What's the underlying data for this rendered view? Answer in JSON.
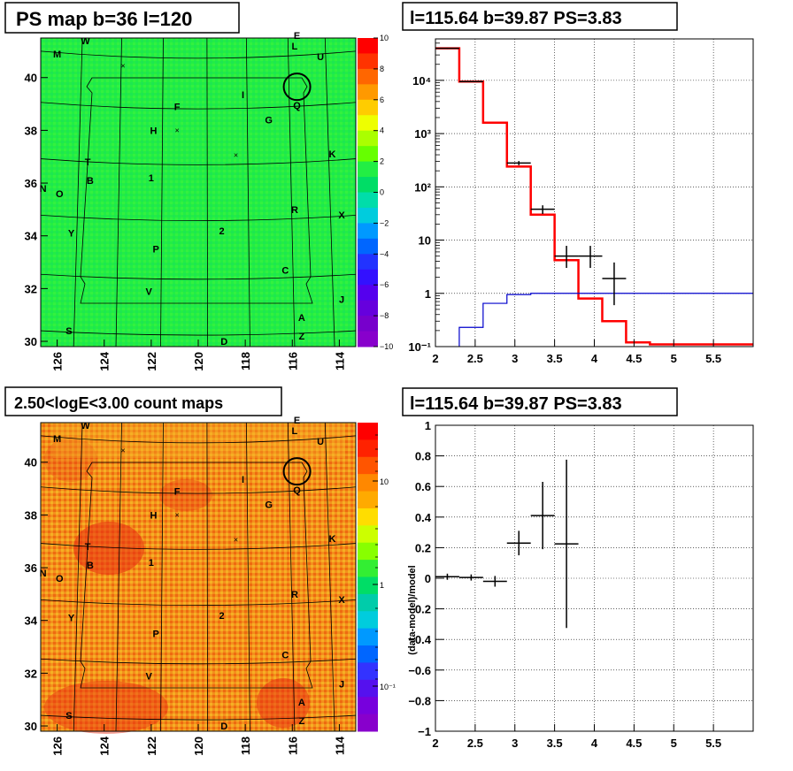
{
  "chart_data": [
    {
      "type": "heatmap",
      "title": "PS map b=36 l=120",
      "x_ticks": [
        "126",
        "124",
        "122",
        "120",
        "118",
        "116",
        "114"
      ],
      "y_ticks": [
        "30",
        "32",
        "34",
        "36",
        "38",
        "40"
      ],
      "xlim": [
        126.7,
        113.3
      ],
      "ylim": [
        29.8,
        41.5
      ],
      "colorbar": {
        "range": [
          -10,
          10
        ],
        "ticks": [
          "10",
          "8",
          "6",
          "4",
          "2",
          "0",
          "−2",
          "−4",
          "−6",
          "−8",
          "−10"
        ]
      },
      "dominant_color": "#22ee44",
      "source_labels": [
        "W",
        "E",
        "L",
        "U",
        "M",
        "I",
        "F",
        "H",
        "G",
        "Q",
        "K",
        "T",
        "B",
        "1",
        "N",
        "O",
        "R",
        "X",
        "Y",
        "2",
        "P",
        "C",
        "V",
        "J",
        "A",
        "S",
        "D",
        "Z"
      ]
    },
    {
      "type": "line",
      "title": "l=115.64 b=39.87 PS=3.83",
      "y_scale": "log",
      "xlim": [
        2,
        6
      ],
      "ylim": [
        0.1,
        60000
      ],
      "x_ticks": [
        "2",
        "2.5",
        "3",
        "3.5",
        "4",
        "4.5",
        "5",
        "5.5"
      ],
      "y_ticks": [
        "10⁻¹",
        "1",
        "10",
        "10²",
        "10³",
        "10⁴"
      ],
      "grid": true,
      "series": [
        {
          "style": "step",
          "color": "#ff0000",
          "edges": [
            2,
            2.3,
            2.6,
            2.9,
            3.2,
            3.5,
            3.8,
            4.1,
            4.4,
            4.7,
            5.0,
            5.3,
            5.6,
            6.0
          ],
          "values": [
            40000,
            9500,
            1600,
            240,
            30,
            4.2,
            0.8,
            0.3,
            0.12,
            0.11,
            0.11,
            0.11,
            0.11
          ]
        },
        {
          "style": "step",
          "color": "#0000cc",
          "edges": [
            2,
            2.3,
            2.6,
            2.9,
            3.2,
            3.5,
            3.8,
            4.1,
            4.4,
            4.7,
            5.0,
            5.3,
            5.6,
            6.0
          ],
          "values": [
            0.05,
            0.23,
            0.65,
            0.95,
            1.0,
            1.0,
            1.0,
            1.0,
            1.0,
            1.0,
            1.0,
            1.0,
            1.0
          ]
        },
        {
          "style": "points",
          "color": "#000000",
          "x": [
            2.15,
            2.45,
            3.05,
            3.35,
            3.65,
            3.95,
            4.25
          ],
          "y": [
            40000,
            9500,
            280,
            38,
            5,
            5,
            1.9
          ],
          "xerr": [
            0.15,
            0.15,
            0.15,
            0.15,
            0.15,
            0.15,
            0.15
          ],
          "ylow": [
            39000,
            9300,
            255,
            31,
            3,
            3,
            0.6
          ],
          "yhigh": [
            41000,
            9700,
            305,
            45,
            7.8,
            7.8,
            3.8
          ]
        }
      ]
    },
    {
      "type": "heatmap",
      "title": "2.50<logE<3.00 count maps",
      "x_ticks": [
        "126",
        "124",
        "122",
        "120",
        "118",
        "116",
        "114"
      ],
      "y_ticks": [
        "30",
        "32",
        "34",
        "36",
        "38",
        "40"
      ],
      "xlim": [
        126.7,
        113.3
      ],
      "ylim": [
        29.8,
        41.5
      ],
      "colorbar": {
        "scale": "log",
        "ticks": [
          "10",
          "1",
          "10⁻¹"
        ]
      },
      "dominant_color": "#f08a1a"
    },
    {
      "type": "scatter",
      "title": "l=115.64 b=39.87 PS=3.83",
      "ylabel": "(data-model)/model",
      "xlim": [
        2,
        6
      ],
      "ylim": [
        -1,
        1
      ],
      "x_ticks": [
        "2",
        "2.5",
        "3",
        "3.5",
        "4",
        "4.5",
        "5",
        "5.5"
      ],
      "y_ticks": [
        "1",
        "0.8",
        "0.6",
        "0.4",
        "0.2",
        "0",
        "−0.2",
        "−0.4",
        "−0.6",
        "−0.8",
        "−1"
      ],
      "grid": true,
      "x": [
        2.15,
        2.45,
        2.75,
        3.05,
        3.35,
        3.65
      ],
      "y": [
        0.01,
        0.005,
        -0.02,
        0.23,
        0.41,
        0.225
      ],
      "xerr": [
        0.15,
        0.15,
        0.15,
        0.15,
        0.15,
        0.15
      ],
      "yerr": [
        0.02,
        0.02,
        0.035,
        0.08,
        0.22,
        0.55
      ]
    }
  ]
}
